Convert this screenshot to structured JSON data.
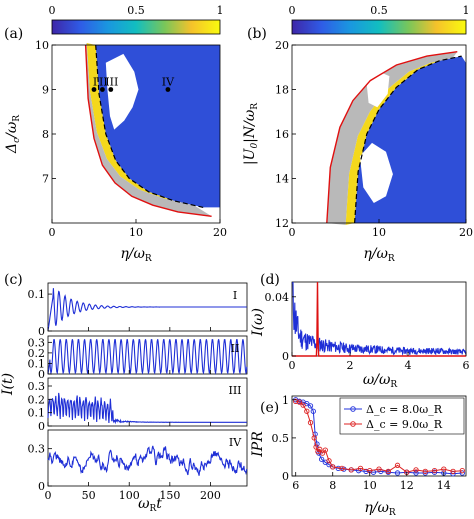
{
  "colormap": {
    "stops": [
      "#3e26a8",
      "#2f5ce6",
      "#1a96e0",
      "#12bec0",
      "#79c65a",
      "#f5c22b",
      "#f9fb0e"
    ],
    "ticks": [
      0,
      0.5,
      1
    ]
  },
  "panels": {
    "a": {
      "label": "(a)",
      "xlabel": "η/ω_R",
      "ylabel": "Δ_c/ω_R",
      "xticks": [
        0,
        10,
        20
      ],
      "yticks": [
        7,
        8,
        9,
        10
      ],
      "xlim": [
        0,
        20
      ],
      "ylim": [
        6,
        10
      ],
      "markers": [
        {
          "label": "I",
          "x": 5.0,
          "y": 9.0
        },
        {
          "label": "II",
          "x": 6.0,
          "y": 9.0
        },
        {
          "label": "III",
          "x": 7.0,
          "y": 9.0
        },
        {
          "label": "IV",
          "x": 13.8,
          "y": 9.0
        }
      ],
      "marker_labels": [
        "I",
        "II",
        "III",
        "IV"
      ]
    },
    "b": {
      "label": "(b)",
      "xlabel": "η/ω_R",
      "ylabel": "|U_0|N/ω_R",
      "xticks": [
        0,
        10,
        20
      ],
      "yticks": [
        12,
        14,
        16,
        18,
        20
      ],
      "xlim": [
        0,
        20
      ],
      "ylim": [
        12,
        20
      ]
    },
    "c": {
      "label": "(c)",
      "xlabel": "ω_R t",
      "ylabel": "I(t)",
      "xticks": [
        0,
        50,
        100,
        150,
        200
      ],
      "xlim": [
        0,
        245
      ],
      "subplots": [
        {
          "name": "I",
          "yticks": [
            0,
            0.1
          ],
          "ylim": [
            0,
            0.13
          ]
        },
        {
          "name": "II",
          "yticks": [
            0,
            0.1,
            0.2,
            0.3
          ],
          "ylim": [
            0,
            0.36
          ]
        },
        {
          "name": "III",
          "yticks": [
            0,
            0.1,
            0.2,
            0.3
          ],
          "ylim": [
            0,
            0.36
          ]
        },
        {
          "name": "IV",
          "yticks": [
            0,
            0.3
          ],
          "ylim": [
            0,
            0.45
          ]
        }
      ]
    },
    "d": {
      "label": "(d)",
      "xlabel": "ω/ω_R",
      "ylabel": "I(ω)",
      "xticks": [
        0,
        2,
        4,
        6
      ],
      "yticks": [
        0,
        0.04
      ],
      "xlim": [
        0,
        6
      ],
      "ylim": [
        0,
        0.05
      ]
    },
    "e": {
      "label": "(e)",
      "xlabel": "η/ω_R",
      "ylabel": "IPR",
      "xticks": [
        6,
        8,
        10,
        12,
        14
      ],
      "yticks": [
        0,
        0.5,
        1
      ],
      "xlim": [
        5.8,
        15.2
      ],
      "ylim": [
        0,
        1.05
      ],
      "legend": [
        {
          "name": "Δ_c = 8.0ω_R",
          "color": "#2233dd"
        },
        {
          "name": "Δ_c = 9.0ω_R",
          "color": "#dd2222"
        }
      ]
    }
  },
  "chart_data": [
    {
      "type": "heatmap",
      "panel": "a",
      "x_range": [
        0,
        20
      ],
      "y_range": [
        6,
        10
      ],
      "colorbar": [
        0,
        1
      ],
      "boundary_red": {
        "x": [
          4.0,
          4.3,
          5.0,
          6.0,
          7.5,
          9.5,
          12.0,
          15.0,
          19.0
        ],
        "y": [
          10.0,
          8.8,
          7.9,
          7.3,
          6.9,
          6.6,
          6.4,
          6.25,
          6.15
        ]
      },
      "boundary_black": {
        "x": [
          5.2,
          5.6,
          6.4,
          7.6,
          9.2,
          11.5,
          14.5,
          18.0
        ],
        "y": [
          10.0,
          8.9,
          8.0,
          7.4,
          7.0,
          6.7,
          6.5,
          6.35
        ]
      }
    },
    {
      "type": "heatmap",
      "panel": "b",
      "x_range": [
        0,
        20
      ],
      "y_range": [
        12,
        20
      ],
      "colorbar": [
        0,
        1
      ],
      "boundary_red": {
        "x": [
          4.0,
          4.4,
          5.5,
          7.0,
          9.0,
          12.0,
          15.5,
          19.0
        ],
        "y": [
          12.0,
          14.5,
          16.3,
          17.5,
          18.4,
          19.1,
          19.5,
          19.7
        ]
      },
      "boundary_black": {
        "x": [
          7.2,
          7.6,
          8.6,
          10.0,
          12.0,
          14.5,
          17.0,
          19.5
        ],
        "y": [
          12.0,
          14.3,
          16.0,
          17.1,
          18.1,
          18.9,
          19.3,
          19.5
        ]
      }
    },
    {
      "type": "line",
      "panel": "c",
      "series": [
        {
          "name": "I",
          "kind": "damped",
          "mean": 0.065,
          "amp": 0.06,
          "period": 7.5,
          "decay": 22
        },
        {
          "name": "II",
          "kind": "periodic",
          "mean": 0.17,
          "amp": 0.16,
          "period": 7.5
        },
        {
          "name": "III",
          "kind": "decaying",
          "mean": 0.12,
          "amp": 0.2,
          "cutoff": 80
        },
        {
          "name": "IV",
          "kind": "noisy",
          "mean": 0.22,
          "amp": 0.12
        }
      ]
    },
    {
      "type": "line",
      "panel": "d",
      "series": [
        {
          "name": "blue",
          "color": "#1f2fd6",
          "x": [
            0.05,
            0.1,
            0.2,
            0.3,
            0.5,
            0.8,
            1.2,
            1.6,
            2.0,
            3.0,
            4.0,
            5.0,
            6.0
          ],
          "y": [
            0.048,
            0.03,
            0.02,
            0.015,
            0.012,
            0.01,
            0.008,
            0.007,
            0.006,
            0.005,
            0.004,
            0.004,
            0.003
          ]
        },
        {
          "name": "red",
          "color": "#dd1111",
          "x": [
            0.84,
            0.86,
            0.88,
            0.9,
            0.92
          ],
          "y": [
            0,
            0.01,
            0.05,
            0.01,
            0
          ]
        }
      ]
    },
    {
      "type": "line",
      "panel": "e",
      "series": [
        {
          "name": "Δ_c = 8.0ω_R",
          "color": "#2233dd",
          "x": [
            6.0,
            6.2,
            6.4,
            6.6,
            6.8,
            6.95,
            7.05,
            7.15,
            7.25,
            7.4,
            7.6,
            7.8,
            8.0,
            8.3,
            8.6,
            9.0,
            9.4,
            9.8,
            10.2,
            10.6,
            11.0,
            11.5,
            12.0,
            12.5,
            13.0,
            13.5,
            14.0,
            14.5,
            15.0
          ],
          "y": [
            1.0,
            0.98,
            0.97,
            0.95,
            0.92,
            0.85,
            0.55,
            0.42,
            0.3,
            0.22,
            0.18,
            0.15,
            0.12,
            0.1,
            0.09,
            0.08,
            0.07,
            0.06,
            0.05,
            0.06,
            0.05,
            0.04,
            0.05,
            0.04,
            0.04,
            0.05,
            0.04,
            0.03,
            0.04
          ]
        },
        {
          "name": "Δ_c = 9.0ω_R",
          "color": "#dd2222",
          "x": [
            6.0,
            6.2,
            6.4,
            6.6,
            6.8,
            7.0,
            7.1,
            7.2,
            7.3,
            7.45,
            7.6,
            7.8,
            8.0,
            8.5,
            9.0,
            9.5,
            10.0,
            10.5,
            11.0,
            11.5,
            12.0,
            12.5,
            13.0,
            13.5,
            14.0,
            14.5,
            15.0
          ],
          "y": [
            0.98,
            0.97,
            0.93,
            0.85,
            0.7,
            0.5,
            0.38,
            0.32,
            0.35,
            0.3,
            0.34,
            0.2,
            0.12,
            0.1,
            0.08,
            0.1,
            0.07,
            0.09,
            0.06,
            0.14,
            0.05,
            0.08,
            0.06,
            0.07,
            0.09,
            0.06,
            0.07
          ]
        }
      ]
    }
  ]
}
